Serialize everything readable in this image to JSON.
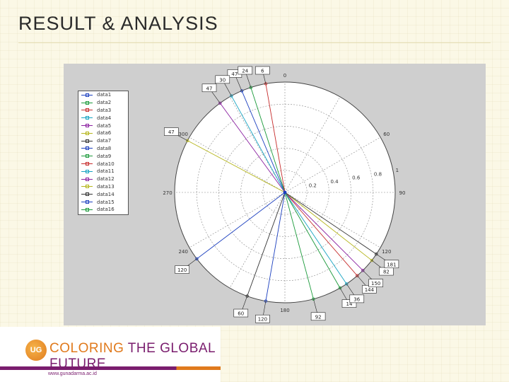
{
  "slide": {
    "title": "RESULT & ANALYSIS"
  },
  "footer": {
    "logo_badge": "UG",
    "logo_text_a": "COLORING",
    "logo_text_b": " THE GLOBAL FUTURE",
    "url": "www.gunadarma.ac.id"
  },
  "chart_data": {
    "type": "polar",
    "angle_labels": [
      "0",
      "60",
      "90",
      "120",
      "180",
      "240",
      "270",
      "300"
    ],
    "radial_labels": [
      "1",
      "0.8",
      "0.6",
      "0.4",
      "0.2"
    ],
    "legend": [
      "data1",
      "data2",
      "data3",
      "data4",
      "data5",
      "data6",
      "data7",
      "data8",
      "data9",
      "data10",
      "data11",
      "data12",
      "data13",
      "data14",
      "data15",
      "data16"
    ],
    "series": [
      {
        "name": "data1",
        "angle": 337,
        "color": "#1b3fbf",
        "label": "47"
      },
      {
        "name": "data2",
        "angle": 342,
        "color": "#1a9a3a",
        "label": "24"
      },
      {
        "name": "data3",
        "angle": 350,
        "color": "#c62b2b",
        "label": "6"
      },
      {
        "name": "data4",
        "angle": 331,
        "color": "#16a3c2",
        "label": "30"
      },
      {
        "name": "data5",
        "angle": 324,
        "color": "#8a1fa0",
        "label": "47"
      },
      {
        "name": "data6",
        "angle": 298,
        "color": "#b5b51a",
        "label": "47"
      },
      {
        "name": "data7",
        "angle": 200,
        "color": "#333333",
        "label": "60"
      },
      {
        "name": "data8",
        "angle": 190,
        "color": "#1b3fbf",
        "label": "120"
      },
      {
        "name": "data9",
        "angle": 150,
        "color": "#1a9a3a",
        "label": "14"
      },
      {
        "name": "data10",
        "angle": 139,
        "color": "#c62b2b",
        "label": "144"
      },
      {
        "name": "data11",
        "angle": 146,
        "color": "#16a3c2",
        "label": "36"
      },
      {
        "name": "data12",
        "angle": 135,
        "color": "#8a1fa0",
        "label": "150"
      },
      {
        "name": "data13",
        "angle": 128,
        "color": "#b5b51a",
        "label": "82"
      },
      {
        "name": "data14",
        "angle": 124,
        "color": "#333333",
        "label": "181"
      },
      {
        "name": "data15",
        "angle": 233,
        "color": "#1b3fbf",
        "label": "120"
      },
      {
        "name": "data16",
        "angle": 165,
        "color": "#1a9a3a",
        "label": "92"
      }
    ]
  }
}
